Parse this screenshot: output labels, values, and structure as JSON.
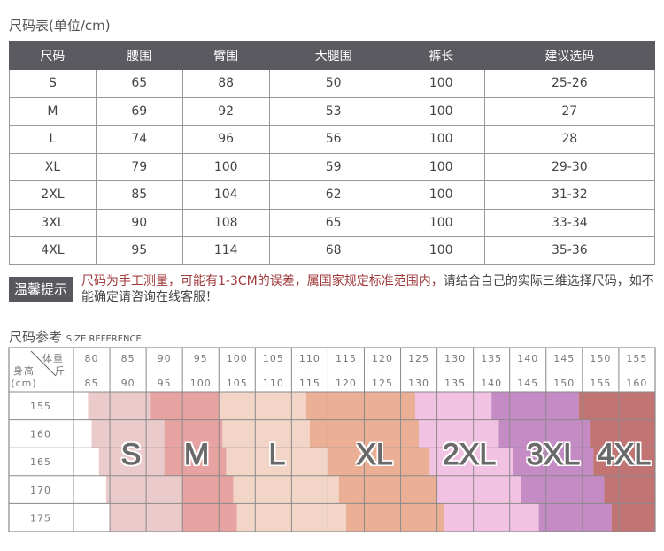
{
  "size_table": {
    "title": "尺码表(单位/cm)",
    "headers": [
      "尺码",
      "腰围",
      "臂围",
      "大腿围",
      "裤长",
      "建议选码"
    ],
    "rows": [
      [
        "S",
        "65",
        "88",
        "50",
        "100",
        "25-26"
      ],
      [
        "M",
        "69",
        "92",
        "53",
        "100",
        "27"
      ],
      [
        "L",
        "74",
        "96",
        "56",
        "100",
        "28"
      ],
      [
        "XL",
        "79",
        "100",
        "59",
        "100",
        "29-30"
      ],
      [
        "2XL",
        "85",
        "104",
        "62",
        "100",
        "31-32"
      ],
      [
        "3XL",
        "90",
        "108",
        "65",
        "100",
        "33-34"
      ],
      [
        "4XL",
        "95",
        "114",
        "68",
        "100",
        "35-36"
      ]
    ]
  },
  "notice": {
    "badge": "温馨提示",
    "red_text": "尺码为手工测量，可能有1-3CM的误差，属国家规定标准范围内，",
    "text": "请结合自己的实际三维选择尺码，如不能确定请咨询在线客服！"
  },
  "reference": {
    "title": "尺码参考",
    "subtitle": "SIZE REFERENCE",
    "corner": {
      "weight": "体重",
      "jin": "斤",
      "height": "身高",
      "unit": "(cm)"
    }
  },
  "chart_data": {
    "type": "heatmap",
    "title": "尺码参考 SIZE REFERENCE",
    "xlabel": "体重 斤",
    "ylabel": "身高 (cm)",
    "weight_ranges": [
      [
        "80",
        "85"
      ],
      [
        "85",
        "90"
      ],
      [
        "90",
        "95"
      ],
      [
        "95",
        "100"
      ],
      [
        "100",
        "105"
      ],
      [
        "105",
        "110"
      ],
      [
        "110",
        "115"
      ],
      [
        "115",
        "120"
      ],
      [
        "120",
        "125"
      ],
      [
        "125",
        "130"
      ],
      [
        "130",
        "135"
      ],
      [
        "135",
        "140"
      ],
      [
        "140",
        "145"
      ],
      [
        "145",
        "150"
      ],
      [
        "150",
        "155"
      ],
      [
        "155",
        "160"
      ]
    ],
    "heights": [
      "155",
      "160",
      "165",
      "170",
      "175"
    ],
    "sizes": [
      "S",
      "M",
      "L",
      "XL",
      "2XL",
      "3XL",
      "4XL"
    ],
    "colors": [
      "#ebcacb",
      "#e7a2a2",
      "#f2d5c7",
      "#ebaf96",
      "#f2c2e2",
      "#c48bc5",
      "#c27474"
    ],
    "size_start_weight_by_height": [
      [
        82,
        90.5,
        100,
        112,
        127,
        137.5,
        149.5
      ],
      [
        82.5,
        92.5,
        100.5,
        112.5,
        127.5,
        138.5,
        151
      ],
      [
        83.5,
        92.5,
        101,
        115,
        129,
        140.5,
        151.5
      ],
      [
        84.5,
        95,
        102,
        116.5,
        130,
        141.5,
        153
      ],
      [
        85,
        95,
        102.5,
        117.5,
        131,
        144,
        154
      ]
    ],
    "weight_max": 160
  }
}
